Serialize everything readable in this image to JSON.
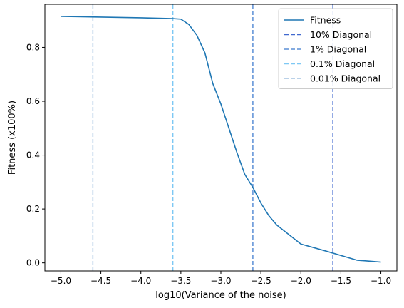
{
  "chart_data": {
    "type": "line",
    "title": "",
    "xlabel": "log10(Variance of the noise)",
    "ylabel": "Fitness (x100%)",
    "xlim": [
      -5.2,
      -0.8
    ],
    "ylim": [
      -0.03,
      0.96
    ],
    "x_ticks": [
      -5.0,
      -4.5,
      -4.0,
      -3.5,
      -3.0,
      -2.5,
      -2.0,
      -1.5,
      -1.0
    ],
    "x_tick_labels": [
      "−5.0",
      "−4.5",
      "−4.0",
      "−3.5",
      "−3.0",
      "−2.5",
      "−2.0",
      "−1.5",
      "−1.0"
    ],
    "y_ticks": [
      0.0,
      0.2,
      0.4,
      0.6,
      0.8
    ],
    "y_tick_labels": [
      "0.0",
      "0.2",
      "0.4",
      "0.6",
      "0.8"
    ],
    "grid": false,
    "legend_position": "top-right",
    "series": [
      {
        "name": "Fitness",
        "color": "#1f77b4",
        "style": "solid",
        "x": [
          -5.0,
          -4.0,
          -3.6,
          -3.5,
          -3.4,
          -3.3,
          -3.2,
          -3.1,
          -3.0,
          -2.9,
          -2.8,
          -2.7,
          -2.6,
          -2.5,
          -2.4,
          -2.3,
          -2.0,
          -1.7,
          -1.3,
          -1.0
        ],
        "y": [
          0.915,
          0.91,
          0.907,
          0.905,
          0.885,
          0.845,
          0.78,
          0.665,
          0.59,
          0.5,
          0.41,
          0.328,
          0.28,
          0.222,
          0.175,
          0.14,
          0.07,
          0.045,
          0.01,
          0.003
        ]
      }
    ],
    "vlines": [
      {
        "name": "10% Diagonal",
        "x": -1.6,
        "color": "#4169cf",
        "style": "dashed"
      },
      {
        "name": "1% Diagonal",
        "x": -2.6,
        "color": "#5b8fd6",
        "style": "dashed"
      },
      {
        "name": "0.1% Diagonal",
        "x": -3.6,
        "color": "#7ec8f4",
        "style": "dashed"
      },
      {
        "name": "0.01% Diagonal",
        "x": -4.6,
        "color": "#a3c2e0",
        "style": "dashed"
      }
    ]
  }
}
